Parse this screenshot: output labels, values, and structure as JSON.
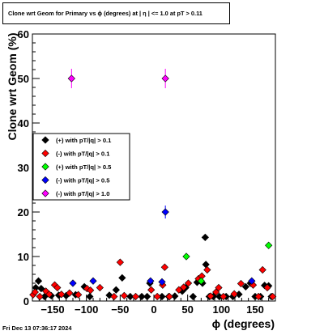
{
  "title": "Clone wrt Geom for Primary vs ϕ (degrees) at | η | <= 1.0 at pT > 0.11",
  "footer": "Fri Dec 13 07:36:17 2024",
  "chart_data": {
    "type": "scatter",
    "xlabel": "ϕ (degrees)",
    "ylabel": "Clone wrt Geom (%)",
    "xlim": [
      -180,
      180
    ],
    "ylim": [
      0,
      60
    ],
    "x_ticks": [
      -150,
      -100,
      -50,
      0,
      50,
      100,
      150
    ],
    "y_ticks": [
      0,
      10,
      20,
      30,
      40,
      50,
      60
    ],
    "x_tick_labels": [
      "−150",
      "−100",
      "−50",
      "0",
      "50",
      "100",
      "150"
    ],
    "y_tick_labels": [
      "0",
      "10",
      "20",
      "30",
      "40",
      "50",
      "60"
    ],
    "grid": false,
    "legend_position": "center-left",
    "series": [
      {
        "name": "(+) with pT/|q| > 0.1",
        "color": "#000000",
        "points": [
          [
            -175,
            3.0
          ],
          [
            -171,
            4.5
          ],
          [
            -167,
            2.8
          ],
          [
            -162,
            1.0
          ],
          [
            -152,
            1.2
          ],
          [
            -141,
            1.3
          ],
          [
            -130,
            1.2
          ],
          [
            -116,
            1.4
          ],
          [
            -103,
            3.2
          ],
          [
            -95,
            1.0
          ],
          [
            -66,
            1.3
          ],
          [
            -56,
            2.5
          ],
          [
            -47,
            5.2
          ],
          [
            -35,
            1.0
          ],
          [
            -18,
            1.0
          ],
          [
            -10,
            1.0
          ],
          [
            -6,
            4.0
          ],
          [
            12,
            1.0
          ],
          [
            22,
            1.0
          ],
          [
            31,
            1.1
          ],
          [
            42,
            2.2
          ],
          [
            47,
            3.0
          ],
          [
            58,
            1.0
          ],
          [
            64,
            4.2
          ],
          [
            72,
            4.0
          ],
          [
            76,
            14.3
          ],
          [
            77,
            8.2
          ],
          [
            82,
            1.0
          ],
          [
            88,
            1.0
          ],
          [
            97,
            1.0
          ],
          [
            107,
            1.0
          ],
          [
            117,
            1.0
          ],
          [
            126,
            1.5
          ],
          [
            136,
            3.2
          ],
          [
            143,
            4.0
          ],
          [
            150,
            1.0
          ],
          [
            158,
            1.0
          ],
          [
            164,
            3.5
          ],
          [
            170,
            3.4
          ],
          [
            174,
            1.0
          ]
        ]
      },
      {
        "name": "(-) with pT/|q| > 0.1",
        "color": "#ff0000",
        "points": [
          [
            -179,
            1.4
          ],
          [
            -176,
            2.0
          ],
          [
            -169,
            1.0
          ],
          [
            -160,
            2.2
          ],
          [
            -155,
            1.5
          ],
          [
            -147,
            3.6
          ],
          [
            -143,
            3.0
          ],
          [
            -137,
            1.5
          ],
          [
            -125,
            1.8
          ],
          [
            -112,
            1.4
          ],
          [
            -99,
            2.8
          ],
          [
            -94,
            2.4
          ],
          [
            -80,
            3.0
          ],
          [
            -59,
            1.0
          ],
          [
            -50,
            8.7
          ],
          [
            -44,
            1.2
          ],
          [
            -27,
            1.0
          ],
          [
            -4,
            2.5
          ],
          [
            5,
            1.0
          ],
          [
            13,
            3.6
          ],
          [
            16,
            7.6
          ],
          [
            23,
            1.0
          ],
          [
            37,
            2.5
          ],
          [
            44,
            3.1
          ],
          [
            51,
            4.0
          ],
          [
            66,
            5.0
          ],
          [
            71,
            5.6
          ],
          [
            79,
            7.0
          ],
          [
            84,
            1.1
          ],
          [
            92,
            2.0
          ],
          [
            96,
            3.0
          ],
          [
            103,
            1.0
          ],
          [
            119,
            1.6
          ],
          [
            129,
            3.9
          ],
          [
            147,
            3.6
          ],
          [
            155,
            1.0
          ],
          [
            161,
            7.0
          ],
          [
            168,
            3.0
          ],
          [
            176,
            1.0
          ]
        ]
      },
      {
        "name": "(+) with pT/|q| > 0.5",
        "color": "#00ff00",
        "points": [
          [
            48,
            10.0
          ],
          [
            70,
            4.5
          ],
          [
            170,
            12.5
          ]
        ]
      },
      {
        "name": "(-) with pT/|q| > 0.5",
        "color": "#0000ff",
        "points": [
          [
            -120,
            4.0
          ],
          [
            -90,
            4.5
          ],
          [
            -5,
            4.5
          ],
          [
            12,
            4.3
          ],
          [
            17,
            20.0
          ],
          [
            145,
            4.5
          ]
        ]
      },
      {
        "name": "(-) with pT/|q| > 1.0",
        "color": "#ff00ff",
        "points": [
          [
            -122,
            50.0
          ],
          [
            17,
            50.0
          ]
        ]
      }
    ]
  }
}
